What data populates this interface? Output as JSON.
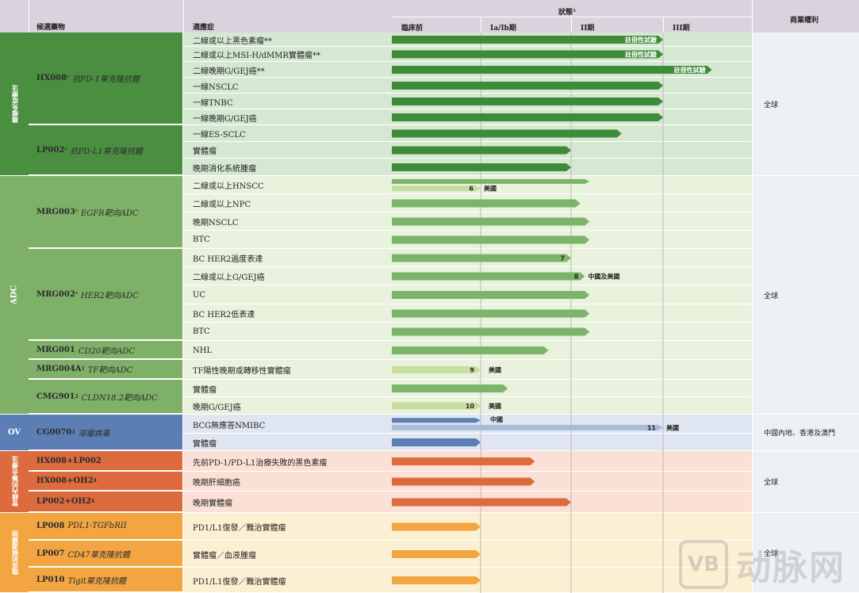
{
  "header": {
    "candidate": "候選藥物",
    "indication": "適應症",
    "status": "狀態⁵",
    "phases": [
      "臨床前",
      "Ia/Ib期",
      "II期",
      "III期"
    ],
    "rights": "商業權利"
  },
  "categories": [
    {
      "id": "io",
      "label": "腫瘤免疫療法",
      "color": "#4a8f40"
    },
    {
      "id": "adc",
      "label": "ADC",
      "color": "#7fb068"
    },
    {
      "id": "ov",
      "label": "OV",
      "color": "#5b7fb5"
    },
    {
      "id": "combo",
      "label": "管線內的聯合療法",
      "color": "#dc6b3e"
    },
    {
      "id": "pre",
      "label": "臨床前候選藥物",
      "color": "#f2a540"
    }
  ],
  "candidates": [
    {
      "cat": "io",
      "name": "HX008",
      "sup": "*",
      "desc": "抗PD-1單克隆抗體"
    },
    {
      "cat": "io",
      "name": "LP002",
      "sup": "*",
      "desc": "抗PD-L1單克隆抗體"
    },
    {
      "cat": "adc",
      "name": "MRG003",
      "sup": "*",
      "desc": "EGFR靶向ADC"
    },
    {
      "cat": "adc",
      "name": "MRG002",
      "sup": "*",
      "desc": "HER2靶向ADC"
    },
    {
      "cat": "adc",
      "name": "MRG001",
      "sup": "",
      "desc": "CD20靶向ADC"
    },
    {
      "cat": "adc",
      "name": "MRG004A",
      "sup": "1",
      "desc": "TF靶向ADC"
    },
    {
      "cat": "adc",
      "name": "CMG901",
      "sup": "2",
      "desc": "CLDN18.2靶向ADC"
    },
    {
      "cat": "ov",
      "name": "CG0070",
      "sup": "3",
      "desc": "溶瘤病毒"
    },
    {
      "cat": "combo",
      "name": "HX008+LP002",
      "sup": "",
      "desc": ""
    },
    {
      "cat": "combo",
      "name": "HX008+OH2",
      "sup": "4",
      "desc": ""
    },
    {
      "cat": "combo",
      "name": "LP002+OH2",
      "sup": "4",
      "desc": ""
    },
    {
      "cat": "pre",
      "name": "LP008",
      "sup": "",
      "desc": "PDL1-TGFbRII"
    },
    {
      "cat": "pre",
      "name": "LP007",
      "sup": "",
      "desc": "CD47單克隆抗體"
    },
    {
      "cat": "pre",
      "name": "LP010",
      "sup": "",
      "desc": "Tigit單克隆抗體"
    }
  ],
  "rights": [
    {
      "cat": "io",
      "text": "全球"
    },
    {
      "cat": "adc",
      "text": "全球"
    },
    {
      "cat": "ov",
      "text": "中國內地、香港及澳門"
    },
    {
      "cat": "combo",
      "text": "全球"
    },
    {
      "cat": "pre",
      "text": "全球"
    }
  ],
  "chart_data": {
    "type": "table",
    "phase_scale": "0 = start of 臨床前, 1 = end of 臨床前, 2 = end of Ia/Ib期, 3 = end of II期, 4 = end of III期",
    "rows": [
      {
        "cand": 0,
        "indication": "二線或以上黑色素瘤**",
        "progress": 3.0,
        "label": "註冊性試驗",
        "variant": "dark"
      },
      {
        "cand": 0,
        "indication": "二線或以上MSI-H/dMMR實體瘤**",
        "progress": 3.0,
        "label": "註冊性試驗",
        "variant": "dark"
      },
      {
        "cand": 0,
        "indication": "二線晚期G/GEJ癌**",
        "progress": 3.55,
        "label": "註冊性試驗",
        "variant": "dark"
      },
      {
        "cand": 0,
        "indication": "一線NSCLC",
        "progress": 3.0,
        "variant": "dark"
      },
      {
        "cand": 0,
        "indication": "一線TNBC",
        "progress": 3.0,
        "variant": "dark"
      },
      {
        "cand": 0,
        "indication": "一線晚期G/GEJ癌",
        "progress": 3.0,
        "variant": "dark"
      },
      {
        "cand": 1,
        "indication": "一線ES-SCLC",
        "progress": 2.55,
        "variant": "dark"
      },
      {
        "cand": 1,
        "indication": "實體瘤",
        "progress": 2.0,
        "variant": "dark"
      },
      {
        "cand": 1,
        "indication": "晚期消化系統腫瘤",
        "progress": 2.0,
        "variant": "dark"
      },
      {
        "cand": 2,
        "indication": "二線或以上HNSCC",
        "progress": 2.2,
        "variant": "mid",
        "sub": {
          "progress": 1.0,
          "footnote": "6",
          "region": "美國"
        }
      },
      {
        "cand": 2,
        "indication": "二線或以上NPC",
        "progress": 2.1,
        "variant": "mid"
      },
      {
        "cand": 2,
        "indication": "晚期NSCLC",
        "progress": 2.2,
        "variant": "mid"
      },
      {
        "cand": 2,
        "indication": "BTC",
        "progress": 2.2,
        "variant": "mid"
      },
      {
        "cand": 3,
        "indication": "BC HER2過度表達",
        "progress": 2.0,
        "variant": "mid",
        "footnote": "7"
      },
      {
        "cand": 3,
        "indication": "二線或以上G/GEJ癌",
        "progress": 2.15,
        "variant": "mid",
        "footnote": "8",
        "region": "中國及美國"
      },
      {
        "cand": 3,
        "indication": "UC",
        "progress": 2.2,
        "variant": "mid"
      },
      {
        "cand": 3,
        "indication": "BC HER2低表達",
        "progress": 2.2,
        "variant": "mid"
      },
      {
        "cand": 3,
        "indication": "BTC",
        "progress": 2.2,
        "variant": "mid"
      },
      {
        "cand": 4,
        "indication": "NHL",
        "progress": 1.75,
        "variant": "mid"
      },
      {
        "cand": 5,
        "indication": "TF陽性晚期或轉移性實體瘤",
        "progress": 1.0,
        "variant": "light",
        "footnote": "9",
        "region": "美國"
      },
      {
        "cand": 6,
        "indication": "實體瘤",
        "progress": 1.3,
        "variant": "mid"
      },
      {
        "cand": 6,
        "indication": "晚期G/GEJ癌",
        "progress": 1.0,
        "variant": "light",
        "footnote": "10",
        "region": "美國"
      },
      {
        "cand": 7,
        "indication": "BCG無應答NMIBC",
        "progress": 1.0,
        "variant": "ov",
        "region": "中國",
        "sub": {
          "progress": 3.0,
          "footnote": "11",
          "region": "美國"
        }
      },
      {
        "cand": 7,
        "indication": "實體瘤",
        "progress": 1.0,
        "variant": "ov"
      },
      {
        "cand": 8,
        "indication": "先前PD-1/PD-L1治療失敗的黑色素瘤",
        "progress": 1.6,
        "variant": "combo"
      },
      {
        "cand": 9,
        "indication": "晚期肝細胞癌",
        "progress": 1.6,
        "variant": "combo"
      },
      {
        "cand": 10,
        "indication": "晚期實體瘤",
        "progress": 2.0,
        "variant": "combo"
      },
      {
        "cand": 11,
        "indication": "PD1/L1復發／難治實體瘤",
        "progress": 1.0,
        "variant": "pre"
      },
      {
        "cand": 12,
        "indication": "實體瘤／血液腫瘤",
        "progress": 1.0,
        "variant": "pre"
      },
      {
        "cand": 13,
        "indication": "PD1/L1復發／難治實體瘤",
        "progress": 1.0,
        "variant": "pre"
      }
    ]
  },
  "colors": {
    "dark": "#3f8a3b",
    "mid": "#7cb46a",
    "light": "#c7dea0",
    "ov": "#5b7fb5",
    "ov_light": "#a8bbd8",
    "combo": "#dc6b3e",
    "pre": "#f2a540",
    "bg_io": "#d5e9d2",
    "bg_adc": "#e9f2dc",
    "bg_ov": "#dfe6f1",
    "bg_combo": "#fbe1d5",
    "bg_pre": "#fcf0d3"
  },
  "watermark": "动脉网"
}
